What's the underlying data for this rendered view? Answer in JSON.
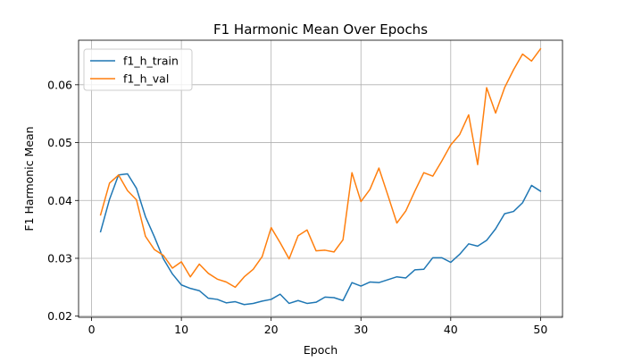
{
  "chart_data": {
    "type": "line",
    "title": "F1 Harmonic Mean Over Epochs",
    "xlabel": "Epoch",
    "ylabel": "F1 Harmonic Mean",
    "xlim": [
      -1.45,
      52.45
    ],
    "ylim": [
      0.0198,
      0.0677
    ],
    "xticks": [
      0,
      10,
      20,
      30,
      40,
      50
    ],
    "yticks": [
      0.02,
      0.03,
      0.04,
      0.05,
      0.06
    ],
    "xtick_labels": [
      "0",
      "10",
      "20",
      "30",
      "40",
      "50"
    ],
    "ytick_labels": [
      "0.02",
      "0.03",
      "0.04",
      "0.05",
      "0.06"
    ],
    "grid": true,
    "legend_position": "upper-left",
    "x": [
      1,
      2,
      3,
      4,
      5,
      6,
      7,
      8,
      9,
      10,
      11,
      12,
      13,
      14,
      15,
      16,
      17,
      18,
      19,
      20,
      21,
      22,
      23,
      24,
      25,
      26,
      27,
      28,
      29,
      30,
      31,
      32,
      33,
      34,
      35,
      36,
      37,
      38,
      39,
      40,
      41,
      42,
      43,
      44,
      45,
      46,
      47,
      48,
      49,
      50
    ],
    "series": [
      {
        "name": "f1_h_train",
        "color": "#1f77b4",
        "values": [
          0.0346,
          0.0402,
          0.0444,
          0.0446,
          0.0421,
          0.0372,
          0.0337,
          0.0299,
          0.0273,
          0.0254,
          0.0248,
          0.0244,
          0.0231,
          0.0229,
          0.0223,
          0.0225,
          0.022,
          0.0222,
          0.0226,
          0.0229,
          0.0238,
          0.0222,
          0.0227,
          0.0222,
          0.0224,
          0.0233,
          0.0232,
          0.0227,
          0.0258,
          0.0252,
          0.0259,
          0.0258,
          0.0263,
          0.0268,
          0.0266,
          0.028,
          0.0281,
          0.0301,
          0.0301,
          0.0293,
          0.0307,
          0.0325,
          0.0321,
          0.0331,
          0.0351,
          0.0377,
          0.0381,
          0.0396,
          0.0426,
          0.0416
        ]
      },
      {
        "name": "f1_h_val",
        "color": "#ff7f0e",
        "values": [
          0.0375,
          0.043,
          0.0444,
          0.0417,
          0.0401,
          0.0338,
          0.0315,
          0.0305,
          0.0283,
          0.0294,
          0.0268,
          0.029,
          0.0274,
          0.0264,
          0.0259,
          0.025,
          0.0268,
          0.0281,
          0.0303,
          0.0353,
          0.0327,
          0.0299,
          0.0339,
          0.0349,
          0.0313,
          0.0314,
          0.0311,
          0.0332,
          0.0448,
          0.0398,
          0.0419,
          0.0456,
          0.0409,
          0.0361,
          0.0382,
          0.0416,
          0.0448,
          0.0442,
          0.0468,
          0.0496,
          0.0514,
          0.0548,
          0.0462,
          0.0595,
          0.0551,
          0.0595,
          0.0626,
          0.0653,
          0.0641,
          0.0662
        ]
      }
    ]
  }
}
